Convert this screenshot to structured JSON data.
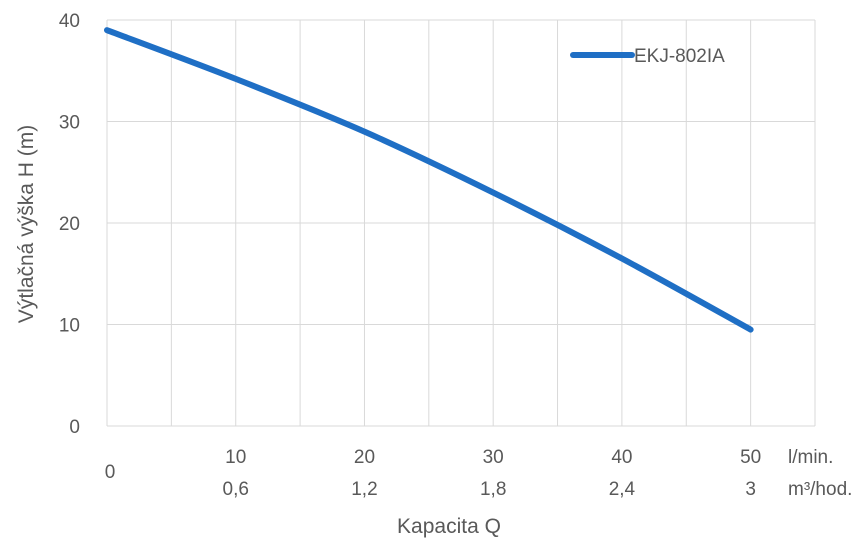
{
  "chart_data": {
    "type": "line",
    "xlabel": "Kapacita Q",
    "ylabel": "Výtlačná výška H (m)",
    "xlim": [
      0,
      55
    ],
    "ylim": [
      0,
      40
    ],
    "grid": true,
    "legend_position": "top-right",
    "x_ticks": [
      {
        "value": 0,
        "label": "0",
        "label2": ""
      },
      {
        "value": 10,
        "label": "10",
        "label2": "0,6"
      },
      {
        "value": 20,
        "label": "20",
        "label2": "1,2"
      },
      {
        "value": 30,
        "label": "30",
        "label2": "1,8"
      },
      {
        "value": 40,
        "label": "40",
        "label2": "2,4"
      },
      {
        "value": 50,
        "label": "50",
        "label2": "3"
      }
    ],
    "x_unit_primary": "l/min.",
    "x_unit_secondary": "m³/hod.",
    "y_ticks": [
      {
        "value": 0,
        "label": "0"
      },
      {
        "value": 10,
        "label": "10"
      },
      {
        "value": 20,
        "label": "20"
      },
      {
        "value": 30,
        "label": "30"
      },
      {
        "value": 40,
        "label": "40"
      }
    ],
    "series": [
      {
        "name": "EKJ-802IA",
        "color": "#1F6FC5",
        "points": [
          {
            "x": 0,
            "y": 39
          },
          {
            "x": 10,
            "y": 34.2
          },
          {
            "x": 20,
            "y": 29
          },
          {
            "x": 30,
            "y": 23
          },
          {
            "x": 40,
            "y": 16.5
          },
          {
            "x": 50,
            "y": 9.5
          }
        ]
      }
    ]
  }
}
